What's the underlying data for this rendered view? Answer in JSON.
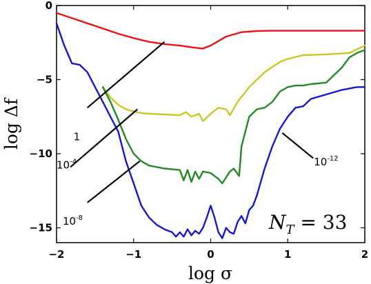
{
  "chart_data": {
    "type": "line",
    "xlabel": "log σ",
    "ylabel": "log Δf",
    "xlim": [
      -2,
      2
    ],
    "ylim": [
      -16,
      0
    ],
    "xticks": [
      -2,
      -1,
      0,
      1,
      2
    ],
    "yticks": [
      0,
      -5,
      -10,
      -15
    ],
    "xtick_labels": [
      "−2",
      "−1",
      "0",
      "1",
      "2"
    ],
    "ytick_labels": [
      "0",
      "−5",
      "−10",
      "−15"
    ],
    "grid": false,
    "legend": "none",
    "annotation": "N_T = 33",
    "series": [
      {
        "label": "1",
        "color": "#ee1111",
        "x": [
          -2.0,
          -1.8,
          -1.6,
          -1.4,
          -1.2,
          -1.0,
          -0.8,
          -0.6,
          -0.4,
          -0.2,
          -0.1,
          0.0,
          0.2,
          0.4,
          0.6,
          0.8,
          1.0,
          1.2,
          1.5,
          2.0
        ],
        "y": [
          -0.5,
          -0.85,
          -1.2,
          -1.55,
          -1.9,
          -2.2,
          -2.45,
          -2.6,
          -2.7,
          -2.85,
          -2.9,
          -2.7,
          -2.1,
          -1.8,
          -1.72,
          -1.7,
          -1.7,
          -1.7,
          -1.7,
          -1.7
        ]
      },
      {
        "label": "10^-4",
        "color": "#c8c81e",
        "x": [
          -1.4,
          -1.3,
          -1.2,
          -1.1,
          -1.0,
          -0.9,
          -0.8,
          -0.6,
          -0.4,
          -0.32,
          -0.25,
          -0.15,
          -0.1,
          0.0,
          0.1,
          0.2,
          0.25,
          0.35,
          0.5,
          0.7,
          0.9,
          1.0,
          1.2,
          1.5,
          1.8,
          2.0
        ],
        "y": [
          -5.5,
          -6.2,
          -6.7,
          -7.0,
          -7.15,
          -7.25,
          -7.3,
          -7.35,
          -7.4,
          -7.2,
          -7.5,
          -7.3,
          -7.8,
          -7.3,
          -6.9,
          -7.0,
          -7.4,
          -6.5,
          -5.5,
          -4.5,
          -3.8,
          -3.6,
          -3.35,
          -3.3,
          -3.2,
          -2.7
        ]
      },
      {
        "label": "10^-8",
        "color": "#1e8c1e",
        "x": [
          -1.4,
          -1.3,
          -1.2,
          -1.1,
          -1.0,
          -0.9,
          -0.8,
          -0.6,
          -0.4,
          -0.35,
          -0.3,
          -0.25,
          -0.2,
          -0.15,
          -0.1,
          0.0,
          0.1,
          0.15,
          0.25,
          0.3,
          0.37,
          0.4,
          0.45,
          0.5,
          0.6,
          0.7,
          0.8,
          0.9,
          1.0,
          1.1,
          1.2,
          1.3,
          1.5,
          1.7,
          1.8,
          1.9,
          2.0
        ],
        "y": [
          -5.5,
          -6.5,
          -7.7,
          -9.0,
          -10.0,
          -10.5,
          -10.8,
          -11.0,
          -11.1,
          -11.8,
          -11.1,
          -11.9,
          -11.2,
          -11.7,
          -11.2,
          -11.3,
          -11.7,
          -12.0,
          -11.2,
          -11.0,
          -11.5,
          -9.5,
          -8.5,
          -7.5,
          -7.0,
          -6.9,
          -6.5,
          -5.8,
          -5.5,
          -5.4,
          -5.4,
          -5.3,
          -5.2,
          -4.2,
          -3.5,
          -3.2,
          -3.0
        ]
      },
      {
        "label": "10^-12",
        "color": "#1414dc",
        "x": [
          -2.0,
          -1.9,
          -1.8,
          -1.7,
          -1.6,
          -1.5,
          -1.4,
          -1.3,
          -1.2,
          -1.1,
          -1.0,
          -0.9,
          -0.8,
          -0.7,
          -0.6,
          -0.5,
          -0.45,
          -0.4,
          -0.35,
          -0.3,
          -0.25,
          -0.2,
          -0.15,
          -0.1,
          -0.05,
          0.0,
          0.05,
          0.1,
          0.15,
          0.2,
          0.25,
          0.3,
          0.35,
          0.4,
          0.45,
          0.5,
          0.55,
          0.6,
          0.7,
          0.8,
          0.9,
          1.0,
          1.1,
          1.2,
          1.3,
          1.5,
          1.7,
          1.8,
          1.9,
          2.0
        ],
        "y": [
          -1.2,
          -2.7,
          -3.9,
          -4.0,
          -4.5,
          -5.5,
          -6.5,
          -7.5,
          -8.5,
          -10.5,
          -12.0,
          -13.5,
          -14.3,
          -14.8,
          -15.1,
          -15.3,
          -15.6,
          -15.3,
          -15.6,
          -15.1,
          -15.5,
          -15.2,
          -15.4,
          -15.0,
          -14.3,
          -13.5,
          -14.3,
          -15.3,
          -15.7,
          -15.0,
          -15.3,
          -15.4,
          -14.6,
          -14.2,
          -14.7,
          -13.8,
          -13.5,
          -12.8,
          -11.0,
          -9.5,
          -8.3,
          -7.5,
          -6.9,
          -6.8,
          -6.3,
          -6.0,
          -5.7,
          -5.6,
          -5.5,
          -5.5
        ]
      }
    ],
    "annotations": [
      {
        "text": "1",
        "sup": "",
        "x": -1.78,
        "y": -9.1,
        "pointer": [
          [
            -1.6,
            -6.9
          ],
          [
            -0.6,
            -2.45
          ]
        ]
      },
      {
        "text": "10",
        "sup": "-4",
        "x": -2.0,
        "y": -11.0,
        "pointer": [
          [
            -1.82,
            -10.9
          ],
          [
            -0.95,
            -7.0
          ]
        ]
      },
      {
        "text": "10",
        "sup": "-8",
        "x": -1.92,
        "y": -14.8,
        "pointer": [
          [
            -1.6,
            -13.3
          ],
          [
            -0.92,
            -10.5
          ]
        ]
      },
      {
        "text": "10",
        "sup": "-12",
        "x": 1.34,
        "y": -10.8,
        "pointer": [
          [
            1.33,
            -10.3
          ],
          [
            0.93,
            -8.6
          ]
        ]
      }
    ]
  }
}
